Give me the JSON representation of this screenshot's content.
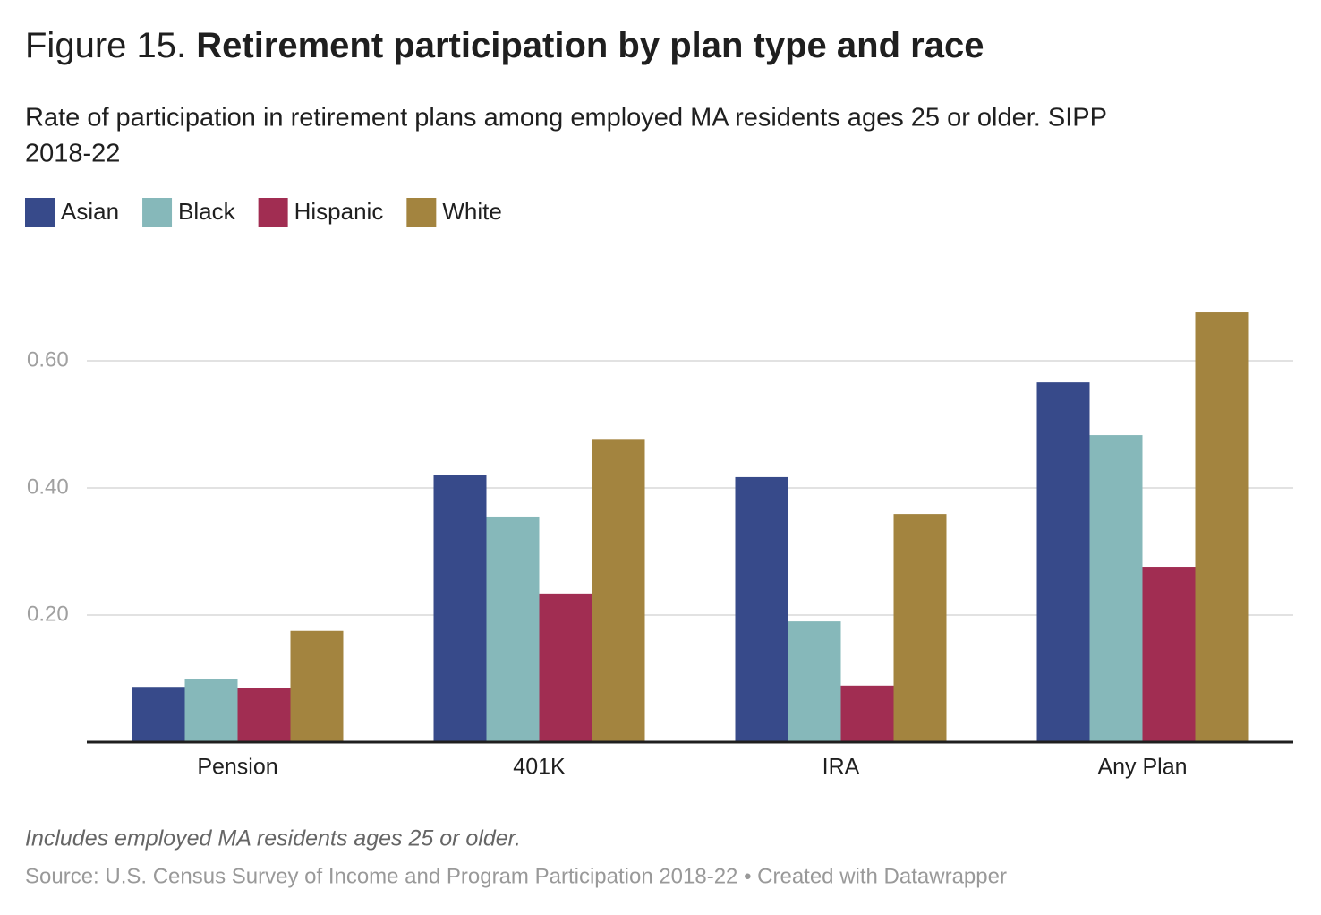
{
  "chart_data": {
    "type": "bar",
    "figure_label": "Figure 15.",
    "title": "Retirement participation by plan type and race",
    "subtitle": [
      "Rate of participation in retirement plans among employed MA residents ages 25 or older. SIPP",
      "2018-22"
    ],
    "categories": [
      "Pension",
      "401K",
      "IRA",
      "Any Plan"
    ],
    "series": [
      {
        "name": "Asian",
        "color": "#374a8a",
        "values": [
          0.087,
          0.421,
          0.417,
          0.566
        ]
      },
      {
        "name": "Black",
        "color": "#86b8ba",
        "values": [
          0.1,
          0.355,
          0.19,
          0.483
        ]
      },
      {
        "name": "Hispanic",
        "color": "#a12d52",
        "values": [
          0.085,
          0.234,
          0.089,
          0.276
        ]
      },
      {
        "name": "White",
        "color": "#a3843f",
        "values": [
          0.175,
          0.477,
          0.359,
          0.676
        ]
      }
    ],
    "ylim": [
      0,
      0.7
    ],
    "yticks": [
      {
        "value": 0.2,
        "label": "0.20"
      },
      {
        "value": 0.4,
        "label": "0.40"
      },
      {
        "value": 0.6,
        "label": "0.60"
      }
    ],
    "grid": true,
    "notes": "Includes employed MA residents ages 25 or older.",
    "source": "Source: U.S. Census Survey of Income and Program Participation 2018-22 • Created with Datawrapper"
  }
}
